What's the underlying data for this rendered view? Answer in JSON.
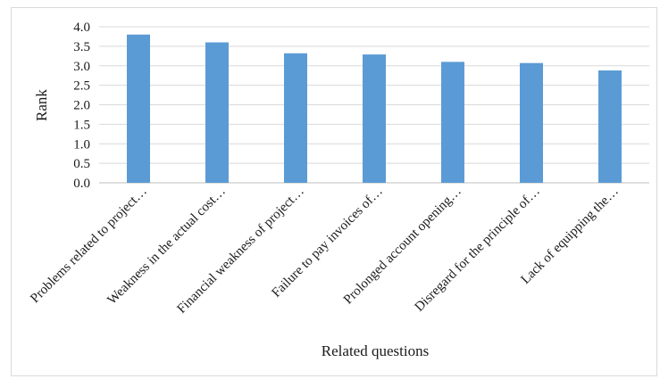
{
  "chart_data": {
    "type": "bar",
    "title": "",
    "xlabel": "Related questions",
    "ylabel": "Rank",
    "ylim": [
      0,
      4
    ],
    "yticks": [
      "0.0",
      "0.5",
      "1.0",
      "1.5",
      "2.0",
      "2.5",
      "3.0",
      "3.5",
      "4.0"
    ],
    "grid": true,
    "legend": "none",
    "bar_color": "#5b9bd5",
    "categories": [
      "Problems related to project…",
      "Weakness in the actual cost…",
      "Financial weakness of project…",
      "Failure to pay invoices of…",
      "Prolonged account opening…",
      "Disregard for the principle of…",
      "Lack of equipping the…"
    ],
    "values": [
      3.8,
      3.6,
      3.32,
      3.29,
      3.1,
      3.07,
      2.88
    ]
  }
}
